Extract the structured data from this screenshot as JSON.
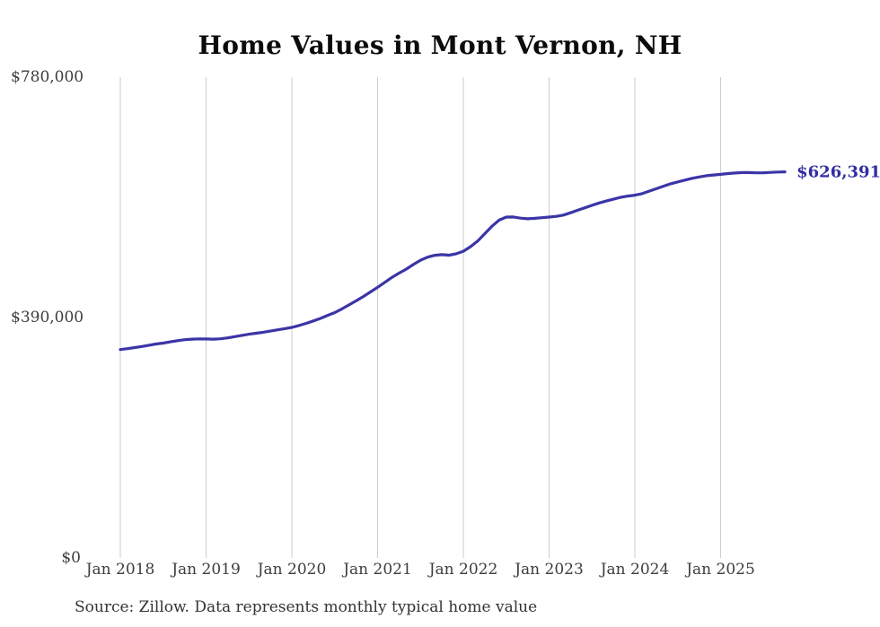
{
  "source_note": "Source: Zillow. Data represents monthly typical home value",
  "colors": {
    "line": "#3b35a7",
    "end_label_text": "#322da1",
    "gridline": "#cccccc",
    "axis_text": "#3d3d3d",
    "title_text": "#0b0b0b",
    "background": "#ffffff"
  },
  "chart_data": {
    "type": "line",
    "title": "Home Values in Mont Vernon, NH",
    "end_label": "$626,391",
    "final_value": 626391,
    "cadence": "monthly",
    "x_start_month": "2018-01",
    "x_end_month": "2025-10",
    "x_tick_labels": [
      "Jan 2018",
      "Jan 2019",
      "Jan 2020",
      "Jan 2021",
      "Jan 2022",
      "Jan 2023",
      "Jan 2024",
      "Jan 2025"
    ],
    "y_ticks": [
      {
        "label": "$780,000",
        "value": 780000
      },
      {
        "label": "$390,000",
        "value": 390000
      },
      {
        "label": "$0",
        "value": 0
      }
    ],
    "ylim": [
      0,
      780000
    ],
    "grid": "vertical-only",
    "legend": "none",
    "series": [
      {
        "name": "Typical home value",
        "monthly_values": [
          338000,
          339500,
          341300,
          343000,
          345000,
          347000,
          348500,
          350500,
          352500,
          354000,
          355000,
          355300,
          355200,
          354900,
          355500,
          357000,
          359000,
          361000,
          363000,
          364500,
          366200,
          368000,
          370000,
          372000,
          374000,
          377000,
          380500,
          384500,
          388500,
          393500,
          398000,
          404000,
          410500,
          417000,
          424000,
          431500,
          439000,
          447000,
          455000,
          462000,
          468500,
          476000,
          483000,
          488000,
          491000,
          492000,
          491200,
          493500,
          497500,
          505000,
          514000,
          526000,
          538000,
          548000,
          553000,
          553200,
          551200,
          550200,
          551000,
          552000,
          553000,
          554200,
          556200,
          560000,
          564000,
          568000,
          572000,
          575800,
          579000,
          582000,
          585000,
          587000,
          588500,
          591000,
          595000,
          599000,
          603000,
          607000,
          610000,
          613000,
          615800,
          618000,
          620000,
          621200,
          622200,
          623500,
          624500,
          625200,
          625200,
          624800,
          624900,
          625500,
          626000,
          626391
        ]
      }
    ]
  }
}
